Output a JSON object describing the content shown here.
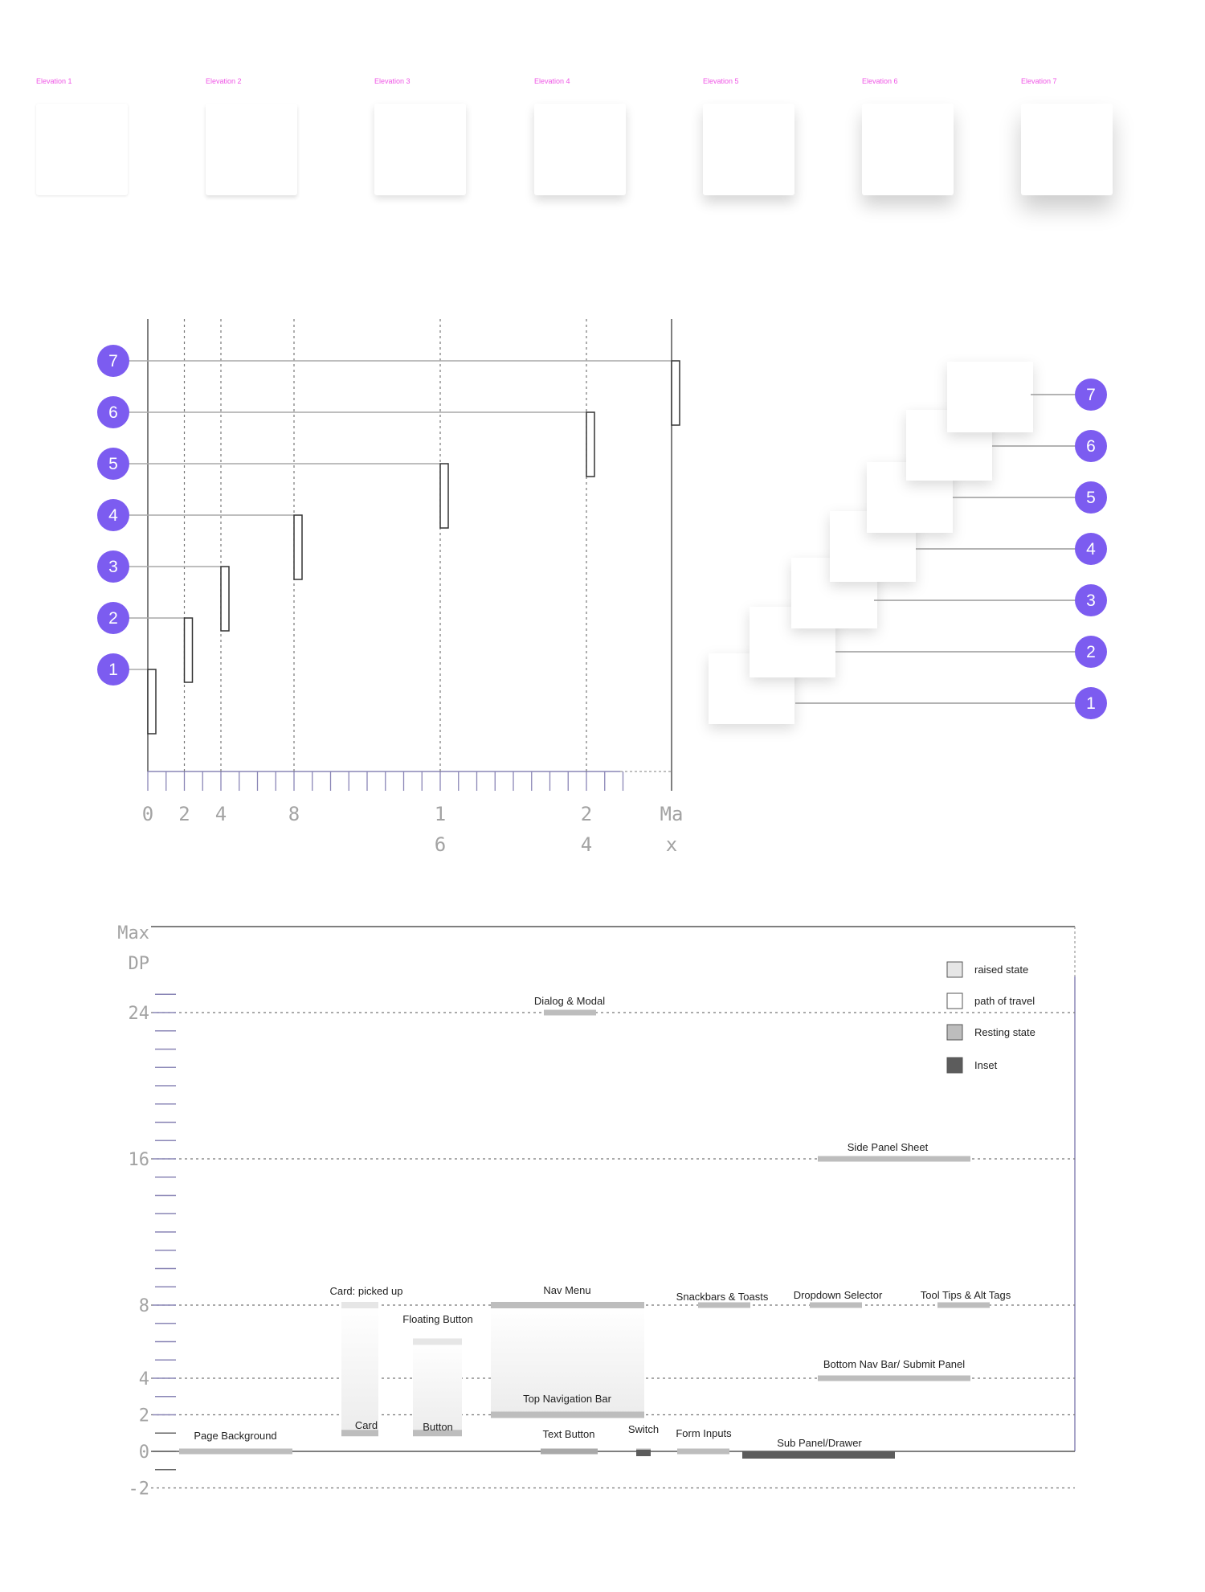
{
  "colors": {
    "accent_purple": "#7c5cf0",
    "elevation_label_pink": "#ef55e6",
    "raised_state": "#e6e6e6",
    "path_of_travel": "#ffffff",
    "resting_state": "#bdbdbd",
    "inset": "#5c5c5c",
    "axis_gray": "#a3a3a3",
    "axis_tick_purple": "#8a86b6"
  },
  "elevation_samples": [
    {
      "label": "Elevation 1",
      "level": 1
    },
    {
      "label": "Elevation 2",
      "level": 2
    },
    {
      "label": "Elevation 3",
      "level": 3
    },
    {
      "label": "Elevation 4",
      "level": 4
    },
    {
      "label": "Elevation 5",
      "level": 5
    },
    {
      "label": "Elevation 6",
      "level": 6
    },
    {
      "label": "Elevation 7",
      "level": 7
    }
  ],
  "elevation_map": {
    "x_tick_labels": [
      {
        "value": 0,
        "lines": [
          "0"
        ]
      },
      {
        "value": 2,
        "lines": [
          "2"
        ]
      },
      {
        "value": 4,
        "lines": [
          "4"
        ]
      },
      {
        "value": 8,
        "lines": [
          "8"
        ]
      },
      {
        "value": 16,
        "lines": [
          "1",
          "6"
        ]
      },
      {
        "value": 24,
        "lines": [
          "2",
          "4"
        ]
      },
      {
        "value": "max",
        "lines": [
          "Ma",
          "x"
        ]
      }
    ],
    "levels": [
      {
        "badge": "1",
        "range_from": 0,
        "range_to": 1
      },
      {
        "badge": "2",
        "range_from": 2,
        "range_to": 3
      },
      {
        "badge": "3",
        "range_from": 4,
        "range_to": 5
      },
      {
        "badge": "4",
        "range_from": 8,
        "range_to": 9
      },
      {
        "badge": "5",
        "range_from": 16,
        "range_to": 17
      },
      {
        "badge": "6",
        "range_from": 24,
        "range_to": 25
      },
      {
        "badge": "7",
        "range_from": "max",
        "range_to": "max"
      }
    ]
  },
  "stack_badges": [
    "1",
    "2",
    "3",
    "4",
    "5",
    "6",
    "7"
  ],
  "chart_data": {
    "type": "other",
    "y_tick_labels": [
      {
        "value": "max",
        "lines": [
          "Max",
          "DP"
        ]
      },
      {
        "value": 24,
        "lines": [
          "24"
        ]
      },
      {
        "value": 16,
        "lines": [
          "16"
        ]
      },
      {
        "value": 8,
        "lines": [
          "8"
        ]
      },
      {
        "value": 4,
        "lines": [
          "4"
        ]
      },
      {
        "value": 2,
        "lines": [
          "2"
        ]
      },
      {
        "value": 0,
        "lines": [
          "0"
        ]
      },
      {
        "value": -2,
        "lines": [
          "-2"
        ]
      }
    ],
    "guide_lines_dp": [
      24,
      16,
      8,
      4,
      2,
      0,
      -2
    ],
    "legend": [
      {
        "label": "raised state",
        "kind": "raised"
      },
      {
        "label": "path of travel",
        "kind": "path"
      },
      {
        "label": "Resting state",
        "kind": "resting"
      },
      {
        "label": "Inset",
        "kind": "inset"
      }
    ],
    "components": [
      {
        "name": "Dialog & Modal",
        "resting_dp": 24
      },
      {
        "name": "Side Panel Sheet",
        "resting_dp": 16
      },
      {
        "name": "Card: picked up",
        "raised_dp": 8,
        "lower_name": "Card",
        "resting_dp": 1
      },
      {
        "name": "Floating Button",
        "raised_dp": 6,
        "lower_name": "Button",
        "resting_dp": 1
      },
      {
        "name": "Nav Menu",
        "raised_dp": 8,
        "lower_name": "Top Navigation Bar",
        "resting_dp": 2
      },
      {
        "name": "Snackbars & Toasts",
        "resting_dp": 8
      },
      {
        "name": "Dropdown Selector",
        "resting_dp": 8
      },
      {
        "name": "Tool Tips & Alt Tags",
        "resting_dp": 8
      },
      {
        "name": "Bottom Nav Bar/ Submit Panel",
        "resting_dp": 4
      },
      {
        "name": "Page Background",
        "resting_dp": 0
      },
      {
        "name": "Text Button",
        "resting_dp": 0
      },
      {
        "name": "Switch",
        "resting_dp": 0,
        "inset_dp": -0.5
      },
      {
        "name": "Form Inputs",
        "resting_dp": 0
      },
      {
        "name": "Sub Panel/Drawer",
        "inset_dp": -0.5
      }
    ]
  }
}
